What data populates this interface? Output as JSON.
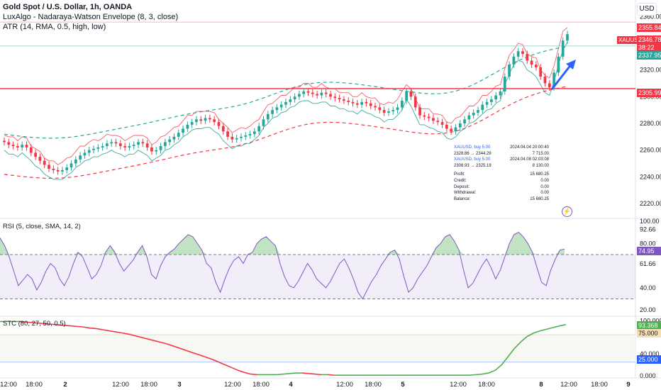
{
  "header": {
    "symbol_title": "Gold Spot / U.S. Dollar, 1h, OANDA",
    "indicator_1": "LuxAlgo - Nadaraya-Watson Envelope (8, 3, close)",
    "indicator_2": "ATR (14, RMA, 0.5, high, low)",
    "currency": "USD"
  },
  "colors": {
    "up": "#26a69a",
    "down": "#f23645",
    "accent": "#2962ff",
    "rsi_line": "#7e57c2",
    "stc_up": "#4caf50",
    "stc_down": "#f23645"
  },
  "chart_data": [
    {
      "type": "candlestick",
      "title": "Gold Spot / U.S. Dollar, 1h, OANDA",
      "symbol": "XAUUSD",
      "ylim": [
        2211,
        2366
      ],
      "y_ticks": [
        "2360.000",
        "2340.000",
        "2320.000",
        "2300.000",
        "2280.000",
        "2260.000",
        "2240.000",
        "2220.000"
      ],
      "x_ticks": [
        "12:00",
        "18:00",
        "2",
        "12:00",
        "18:00",
        "3",
        "12:00",
        "18:00",
        "4",
        "12:00",
        "18:00",
        "5",
        "12:00",
        "18:00",
        "8",
        "12:00",
        "18:00",
        "9"
      ],
      "price_labels": {
        "upper_atr": "2355.847",
        "last_price": "2346.780",
        "countdown": "38:22",
        "lower_atr": "2337.953",
        "support_line": "2305.990"
      },
      "symbol_tag": "XAUUSD",
      "horizontal_line": 2305.99,
      "trades": [
        {
          "title": "XAUUSD, buy 5.00",
          "time": "2024.04.04 20:00:40",
          "prices": "2328.86 → 2344.29",
          "profit": "7 715.00"
        },
        {
          "title": "XAUUSD, buy 5.00",
          "time": "2024.04.08 02:03:08",
          "prices": "2308.93 → 2325.19",
          "profit": "8 130.00"
        }
      ],
      "summary": [
        {
          "label": "Profit:",
          "value": "15 680.25"
        },
        {
          "label": "Credit:",
          "value": "0.00"
        },
        {
          "label": "Deposit:",
          "value": "0.00"
        },
        {
          "label": "Withdrawal:",
          "value": "0.00"
        },
        {
          "label": "Balance:",
          "value": "15 680.25"
        }
      ],
      "close_series": [
        2266,
        2264,
        2263,
        2262,
        2264,
        2262,
        2258,
        2255,
        2252,
        2249,
        2246,
        2245,
        2244,
        2245,
        2247,
        2250,
        2253,
        2256,
        2258,
        2260,
        2261,
        2262,
        2263,
        2265,
        2266,
        2265,
        2263,
        2262,
        2263,
        2264,
        2266,
        2265,
        2262,
        2259,
        2260,
        2263,
        2266,
        2268,
        2270,
        2273,
        2276,
        2279,
        2281,
        2283,
        2282,
        2284,
        2283,
        2281,
        2278,
        2274,
        2270,
        2268,
        2269,
        2270,
        2271,
        2272,
        2274,
        2278,
        2283,
        2287,
        2290,
        2292,
        2294,
        2296,
        2298,
        2300,
        2302,
        2304,
        2303,
        2302,
        2301,
        2303,
        2302,
        2300,
        2299,
        2298,
        2297,
        2296,
        2295,
        2294,
        2296,
        2295,
        2293,
        2292,
        2290,
        2288,
        2289,
        2290,
        2292,
        2297,
        2304,
        2300,
        2292,
        2286,
        2285,
        2284,
        2282,
        2281,
        2279,
        2276,
        2274,
        2277,
        2280,
        2283,
        2286,
        2288,
        2290,
        2294,
        2296,
        2298,
        2301,
        2304,
        2315,
        2324,
        2330,
        2334,
        2332,
        2327,
        2324,
        2322,
        2315,
        2310,
        2307,
        2318,
        2330,
        2342,
        2346.78
      ]
    },
    {
      "type": "line",
      "title": "RSI (5, close, SMA, 14, 2)",
      "ylim": [
        15,
        100
      ],
      "y_ticks": [
        "100.00",
        "92.66",
        "80.00",
        "61.66",
        "40.00",
        "20.00"
      ],
      "levels": [
        70,
        30
      ],
      "last_value": "74.95",
      "series": [
        {
          "name": "RSI",
          "values": [
            85,
            78,
            68,
            55,
            42,
            47,
            52,
            48,
            38,
            45,
            55,
            62,
            58,
            48,
            42,
            50,
            62,
            72,
            68,
            58,
            48,
            52,
            60,
            72,
            78,
            72,
            62,
            55,
            60,
            65,
            72,
            78,
            68,
            52,
            48,
            60,
            68,
            72,
            75,
            80,
            84,
            88,
            86,
            80,
            74,
            62,
            58,
            45,
            36,
            48,
            58,
            65,
            68,
            62,
            70,
            72,
            80,
            84,
            86,
            82,
            78,
            62,
            50,
            42,
            40,
            46,
            54,
            62,
            56,
            48,
            44,
            40,
            46,
            54,
            62,
            66,
            58,
            48,
            36,
            30,
            38,
            46,
            52,
            60,
            66,
            72,
            74,
            66,
            50,
            36,
            40,
            48,
            54,
            60,
            68,
            76,
            80,
            86,
            88,
            82,
            74,
            56,
            40,
            44,
            52,
            60,
            66,
            58,
            48,
            56,
            68,
            80,
            88,
            90,
            86,
            80,
            72,
            58,
            45,
            42,
            56,
            66,
            74,
            74.95
          ]
        }
      ]
    },
    {
      "type": "line",
      "title": "STC (80, 27, 50, 0.5)",
      "ylim": [
        -4,
        106
      ],
      "y_ticks": [
        "100.000",
        "40.000",
        "0.000"
      ],
      "levels": [
        75,
        25
      ],
      "labels": {
        "last": "93.368",
        "upper": "75.000",
        "lower": "25.000"
      },
      "series": [
        {
          "name": "STC",
          "values": [
            99,
            99,
            99,
            99,
            98,
            97,
            96,
            95,
            94,
            93,
            92,
            91,
            90,
            89,
            87,
            86,
            84,
            82,
            80,
            78,
            76,
            73,
            70,
            67,
            64,
            61,
            58,
            54,
            50,
            46,
            42,
            38,
            34,
            30,
            25,
            20,
            15,
            10,
            6,
            3,
            2,
            2,
            2,
            2,
            3,
            4,
            5,
            5,
            4,
            3,
            2,
            2,
            1,
            1,
            1,
            1,
            1,
            1,
            1,
            1,
            1,
            1,
            1,
            1,
            1,
            1,
            1,
            1,
            1,
            1,
            1,
            1,
            1,
            1,
            2,
            3,
            5,
            10,
            20,
            35,
            50,
            62,
            72,
            78,
            82,
            85,
            88,
            91,
            93.368
          ]
        }
      ]
    }
  ]
}
